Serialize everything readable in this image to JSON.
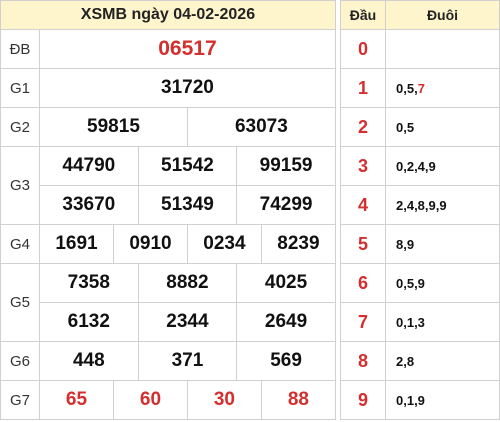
{
  "title": "XSMB ngày 04-02-2026",
  "prizes": {
    "db": {
      "label": "ĐB",
      "numbers": [
        "06517"
      ]
    },
    "g1": {
      "label": "G1",
      "numbers": [
        "31720"
      ]
    },
    "g2": {
      "label": "G2",
      "numbers": [
        "59815",
        "63073"
      ]
    },
    "g3": {
      "label": "G3",
      "numbers": [
        "44790",
        "51542",
        "99159",
        "33670",
        "51349",
        "74299"
      ]
    },
    "g4": {
      "label": "G4",
      "numbers": [
        "1691",
        "0910",
        "0234",
        "8239"
      ]
    },
    "g5": {
      "label": "G5",
      "numbers": [
        "7358",
        "8882",
        "4025",
        "6132",
        "2344",
        "2649"
      ]
    },
    "g6": {
      "label": "G6",
      "numbers": [
        "448",
        "371",
        "569"
      ]
    },
    "g7": {
      "label": "G7",
      "numbers": [
        "65",
        "60",
        "30",
        "88"
      ]
    }
  },
  "dauduoi": {
    "header_dau": "Đầu",
    "header_duoi": "Đuôi",
    "rows": [
      {
        "dau": "0",
        "duoi": ""
      },
      {
        "dau": "1",
        "duoi": "0,5,",
        "duoi_special": "7"
      },
      {
        "dau": "2",
        "duoi": "0,5"
      },
      {
        "dau": "3",
        "duoi": "0,2,4,9"
      },
      {
        "dau": "4",
        "duoi": "2,4,8,9,9"
      },
      {
        "dau": "5",
        "duoi": "8,9"
      },
      {
        "dau": "6",
        "duoi": "0,5,9"
      },
      {
        "dau": "7",
        "duoi": "0,1,3"
      },
      {
        "dau": "8",
        "duoi": "2,8"
      },
      {
        "dau": "9",
        "duoi": "0,1,9"
      }
    ]
  },
  "colors": {
    "header_bg": "#fff5cc",
    "highlight": "#d32f2f",
    "border": "#d0d0d0"
  }
}
